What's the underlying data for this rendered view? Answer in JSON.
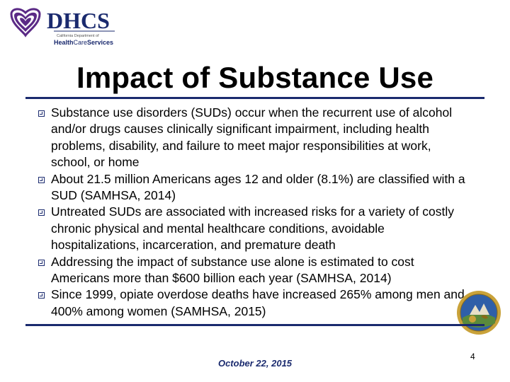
{
  "logo": {
    "name": "DHCS",
    "subtitle": "California Department of",
    "service_name_part1": "Health",
    "service_name_part2": "Care",
    "service_name_part3": "Services"
  },
  "slide": {
    "title": "Impact of Substance Use",
    "bullets": [
      "Substance use disorders (SUDs) occur when the recurrent use of alcohol and/or drugs causes clinically significant impairment, including health problems, disability, and failure to meet major responsibilities at work, school, or home",
      "About 21.5 million Americans ages 12 and older (8.1%) are classified with a SUD (SAMHSA, 2014)",
      "Untreated SUDs are associated with increased risks for a variety of costly chronic physical and mental healthcare conditions, avoidable hospitalizations, incarceration, and premature death",
      "Addressing the impact of substance use alone is estimated to cost Americans more than $600 billion each year (SAMHSA, 2014)",
      "Since 1999, opiate overdose deaths have increased 265% among men and 400% among women (SAMHSA, 2015)"
    ]
  },
  "footer": {
    "date": "October 22, 2015",
    "page_number": "4"
  },
  "colors": {
    "navy": "#1a2a6e",
    "purple": "#5b2a86",
    "seal_gold": "#c9a23a",
    "seal_blue": "#2f5fa8"
  }
}
